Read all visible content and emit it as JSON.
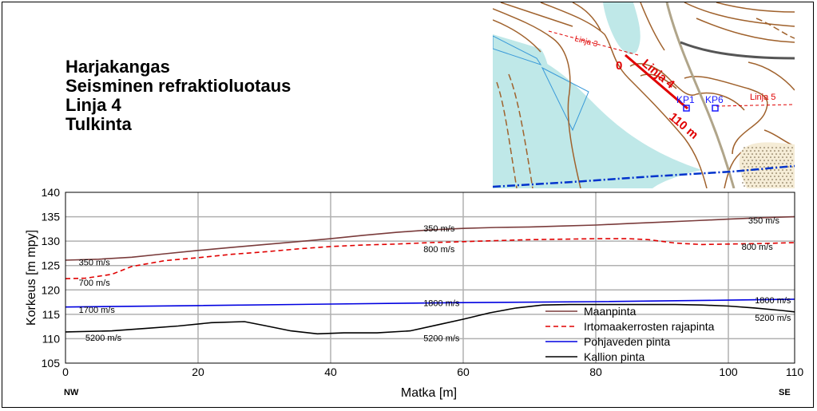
{
  "titles": [
    "Harjakangas",
    "Seisminen refraktioluotaus",
    "Linja 4",
    "Tulkinta"
  ],
  "map": {
    "labels": {
      "line3": "Linja 3",
      "line4": "Linja 4",
      "line5": "Linja 5",
      "start": "0",
      "end": "110 m",
      "kp1": "KP1",
      "kp6": "KP6"
    },
    "colors": {
      "contour": "#a0622d",
      "water": "#bfe8e8",
      "road": "#b0a58a",
      "line": "#e00000",
      "point": "#1a1aff",
      "groundwater": "#0033cc"
    }
  },
  "chart_data": {
    "type": "line",
    "title": "",
    "xlabel": "Matka [m]",
    "ylabel": "Korkeus [m mpy]",
    "xlim": [
      0,
      110
    ],
    "ylim": [
      105,
      140
    ],
    "xticks": [
      0,
      20,
      40,
      60,
      80,
      100,
      110
    ],
    "yticks": [
      105,
      110,
      115,
      120,
      125,
      130,
      135,
      140
    ],
    "grid": true,
    "legend_position": "bottom-right",
    "direction_left": "NW",
    "direction_right": "SE",
    "series": [
      {
        "name": "Maanpinta",
        "color": "#7a3b3b",
        "dash": "",
        "x": [
          0,
          5,
          10,
          15,
          20,
          25,
          30,
          35,
          40,
          45,
          50,
          55,
          60,
          65,
          70,
          75,
          80,
          85,
          90,
          95,
          100,
          105,
          110
        ],
        "y": [
          126.1,
          126.3,
          126.7,
          127.4,
          128.1,
          128.7,
          129.3,
          129.9,
          130.5,
          131.2,
          131.8,
          132.3,
          132.6,
          132.8,
          132.9,
          133.1,
          133.3,
          133.6,
          133.9,
          134.2,
          134.5,
          134.8,
          135.0
        ]
      },
      {
        "name": "Irtomaakerrosten rajapinta",
        "color": "#e00000",
        "dash": "6,4",
        "x": [
          0,
          3,
          7,
          10,
          15,
          20,
          25,
          30,
          35,
          40,
          45,
          50,
          55,
          60,
          65,
          70,
          75,
          80,
          85,
          88,
          92,
          96,
          100,
          105,
          110
        ],
        "y": [
          122.3,
          122.4,
          123.2,
          124.8,
          126.0,
          126.6,
          127.3,
          127.8,
          128.4,
          128.9,
          129.2,
          129.4,
          129.7,
          129.9,
          130.1,
          130.3,
          130.4,
          130.5,
          130.5,
          130.3,
          129.6,
          129.3,
          129.4,
          129.5,
          129.7
        ]
      },
      {
        "name": "Pohjaveden pinta",
        "color": "#0000e0",
        "dash": "",
        "x": [
          0,
          20,
          40,
          60,
          80,
          100,
          110
        ],
        "y": [
          116.5,
          116.8,
          117.1,
          117.4,
          117.6,
          117.9,
          118.1
        ]
      },
      {
        "name": "Kallion pinta",
        "color": "#000000",
        "dash": "",
        "x": [
          0,
          7,
          12,
          17,
          22,
          27,
          30,
          34,
          38,
          42,
          47,
          52,
          56,
          60,
          64,
          68,
          72,
          76,
          80,
          84,
          88,
          92,
          96,
          100,
          104,
          108,
          110
        ],
        "y": [
          111.4,
          111.6,
          112.1,
          112.6,
          113.3,
          113.5,
          112.7,
          111.6,
          111.0,
          111.2,
          111.2,
          111.6,
          112.8,
          114.0,
          115.3,
          116.3,
          116.9,
          117.0,
          117.0,
          117.0,
          117.0,
          117.0,
          116.9,
          116.7,
          116.3,
          115.8,
          115.5
        ]
      }
    ],
    "velocity_labels": [
      {
        "text": "350 m/s",
        "x": 54,
        "y": 132.0
      },
      {
        "text": "350 m/s",
        "x": 103,
        "y": 133.6
      },
      {
        "text": "350 m/s",
        "x": 2,
        "y": 125.0
      },
      {
        "text": "800 m/s",
        "x": 54,
        "y": 127.7
      },
      {
        "text": "800 m/s",
        "x": 102,
        "y": 128.2
      },
      {
        "text": "700 m/s",
        "x": 2,
        "y": 120.9
      },
      {
        "text": "1800 m/s",
        "x": 54,
        "y": 116.7
      },
      {
        "text": "1800 m/s",
        "x": 104,
        "y": 117.3
      },
      {
        "text": "1700 m/s",
        "x": 2,
        "y": 115.3
      },
      {
        "text": "5200 m/s",
        "x": 54,
        "y": 109.5
      },
      {
        "text": "5200 m/s",
        "x": 104,
        "y": 113.7
      },
      {
        "text": "5200 m/s",
        "x": 3,
        "y": 109.6
      }
    ]
  }
}
